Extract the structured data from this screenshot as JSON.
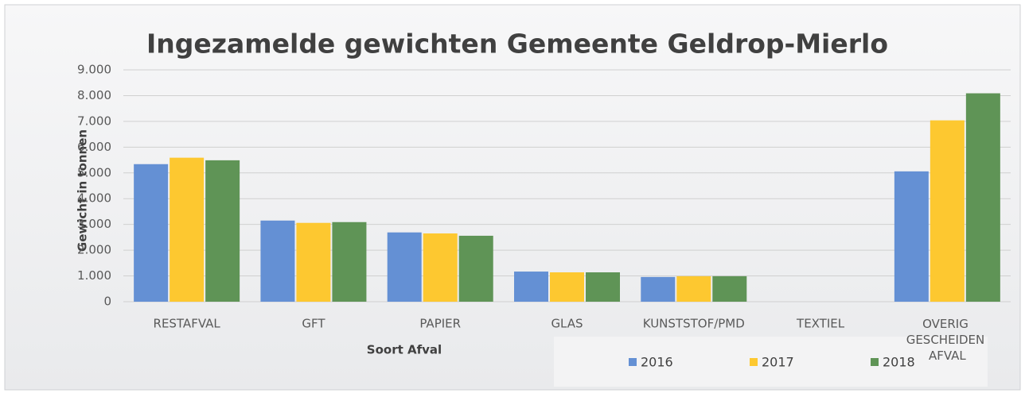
{
  "chart_data": {
    "type": "bar",
    "title": "Ingezamelde gewichten Gemeente Geldrop-Mierlo",
    "y_label": "Gewicht in tonnen",
    "x_label": "Soort Afval",
    "categories": [
      "RESTAFVAL",
      "GFT",
      "PAPIER",
      "GLAS",
      "KUNSTSTOF/PMD",
      "TEXTIEL",
      "OVERIG GESCHEIDEN AFVAL"
    ],
    "series": [
      {
        "name": "2016",
        "color": "#6490d4",
        "values": [
          5340,
          3150,
          2690,
          1170,
          960,
          null,
          5060
        ]
      },
      {
        "name": "2017",
        "color": "#fdc830",
        "values": [
          5590,
          3060,
          2650,
          1140,
          990,
          null,
          7040
        ]
      },
      {
        "name": "2018",
        "color": "#5f9456",
        "values": [
          5490,
          3090,
          2560,
          1140,
          990,
          null,
          8090
        ]
      }
    ],
    "ylim": [
      0,
      9000
    ],
    "yticks": [
      0,
      {
        "value": 1000,
        "label": "1.000"
      },
      {
        "value": 2000,
        "label": "2.000"
      },
      {
        "value": 3000,
        "label": "3.000"
      },
      {
        "value": 4000,
        "label": "4.000"
      },
      {
        "value": 5000,
        "label": "5.000"
      },
      {
        "value": 6000,
        "label": "6.000"
      },
      {
        "value": 7000,
        "label": "7.000"
      },
      {
        "value": 8000,
        "label": "8.000"
      },
      {
        "value": 9000,
        "label": "9.000"
      }
    ],
    "grid": true,
    "legend": "bottom-right"
  }
}
